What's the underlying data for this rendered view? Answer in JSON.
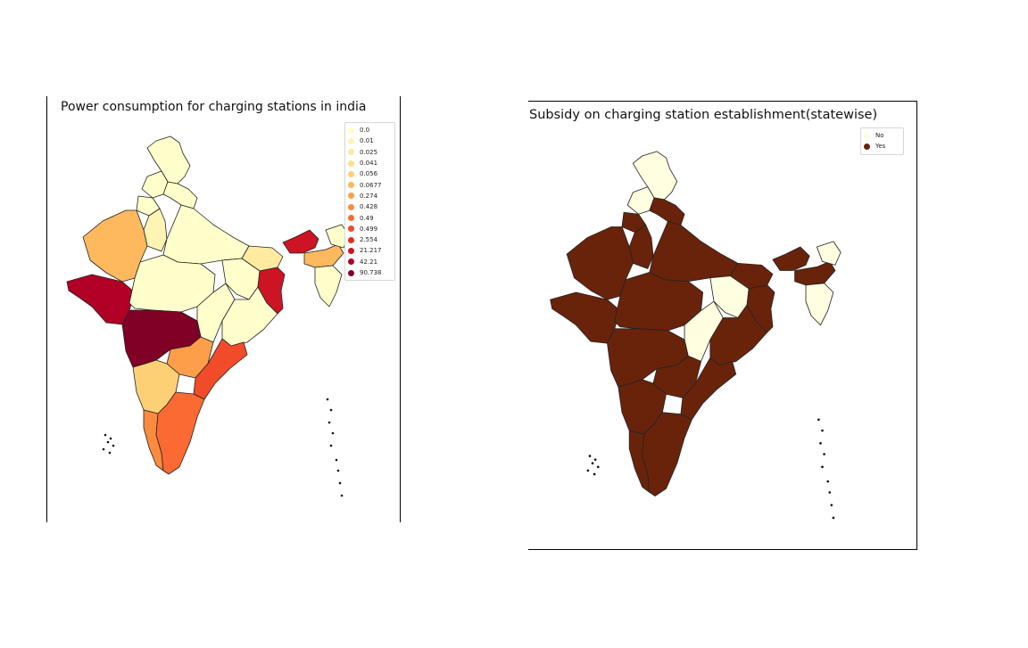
{
  "left_map": {
    "title": "Power consumption for charging stations in india",
    "legend": [
      {
        "label": "0.0",
        "color": "#ffffcc"
      },
      {
        "label": "0.01",
        "color": "#fff4b4"
      },
      {
        "label": "0.025",
        "color": "#feeba0"
      },
      {
        "label": "0.041",
        "color": "#fee08b"
      },
      {
        "label": "0.056",
        "color": "#fed076"
      },
      {
        "label": "0.0677",
        "color": "#feb85e"
      },
      {
        "label": "0.274",
        "color": "#fd9f4a"
      },
      {
        "label": "0.428",
        "color": "#fc8a3f"
      },
      {
        "label": "0.49",
        "color": "#fc6a33"
      },
      {
        "label": "0.499",
        "color": "#f24b2a"
      },
      {
        "label": "2.554",
        "color": "#e32c24"
      },
      {
        "label": "21.217",
        "color": "#cc1424"
      },
      {
        "label": "42.21",
        "color": "#b10026"
      },
      {
        "label": "90.738",
        "color": "#800026"
      }
    ]
  },
  "right_map": {
    "title": "Subsidy on charging station establishment(statewise)",
    "legend": [
      {
        "label": "No",
        "color": "#fffee0"
      },
      {
        "label": "Yes",
        "color": "#6a230b"
      }
    ]
  }
}
